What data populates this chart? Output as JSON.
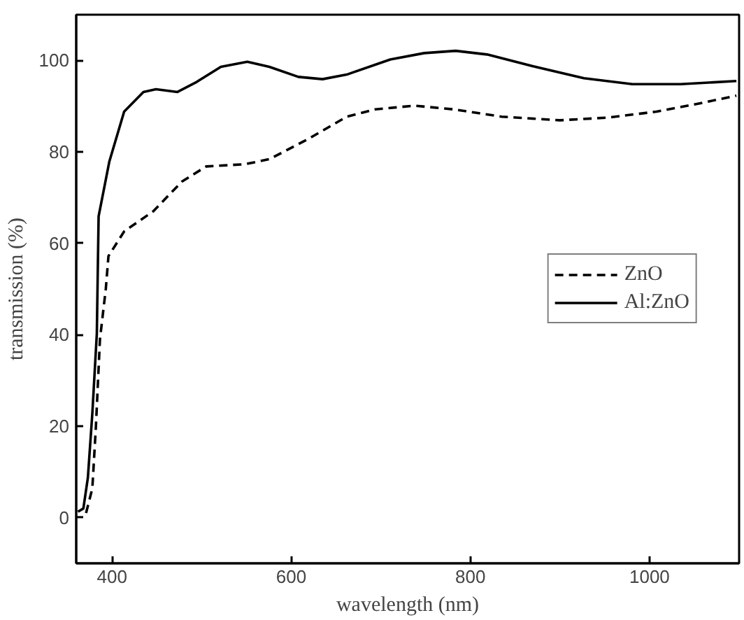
{
  "chart_data": {
    "type": "line",
    "xlabel": "wavelength (nm)",
    "ylabel": "transmission (%)",
    "xlim": [
      360,
      1100
    ],
    "ylim": [
      -10,
      110
    ],
    "xticks": [
      400,
      600,
      800,
      1000
    ],
    "yticks": [
      0,
      20,
      40,
      60,
      80,
      100
    ],
    "grid": false,
    "legend": "right",
    "marker": "none",
    "series": [
      {
        "name": "ZnO",
        "color": "#000000",
        "line_style": "dashed",
        "x": [
          371,
          378,
          382,
          386.5,
          393,
          396,
          413.5,
          446,
          478,
          505,
          548.6,
          575.6,
          618.8,
          662,
          694,
          737.7,
          780.8,
          834.8,
          899.7,
          953.8,
          1007.8,
          1051,
          1097
        ],
        "values": [
          1,
          6.4,
          20,
          39,
          50,
          57.2,
          62.6,
          67,
          73.5,
          76.8,
          77.3,
          78.4,
          82.8,
          87.7,
          89.3,
          90.1,
          89.3,
          87.7,
          86.9,
          87.5,
          88.8,
          90.4,
          92.3
        ]
      },
      {
        "name": "Al:ZnO",
        "color": "#000000",
        "line_style": "solid",
        "x": [
          362,
          368,
          373,
          378,
          383,
          385,
          397,
          413.5,
          435,
          449,
          473,
          494.5,
          521.5,
          551,
          575.6,
          608,
          635,
          662,
          710.6,
          748.5,
          783.6,
          818.7,
          872.7,
          926.7,
          980.8,
          1034.8,
          1097
        ],
        "values": [
          1.3,
          2,
          8.7,
          22.8,
          40.2,
          65.9,
          77.9,
          88.8,
          93.1,
          93.7,
          93.1,
          95.3,
          98.6,
          99.7,
          98.6,
          96.4,
          95.9,
          96.9,
          100.2,
          101.6,
          102.1,
          101.3,
          98.6,
          96.1,
          94.8,
          94.8,
          95.5
        ]
      }
    ]
  }
}
